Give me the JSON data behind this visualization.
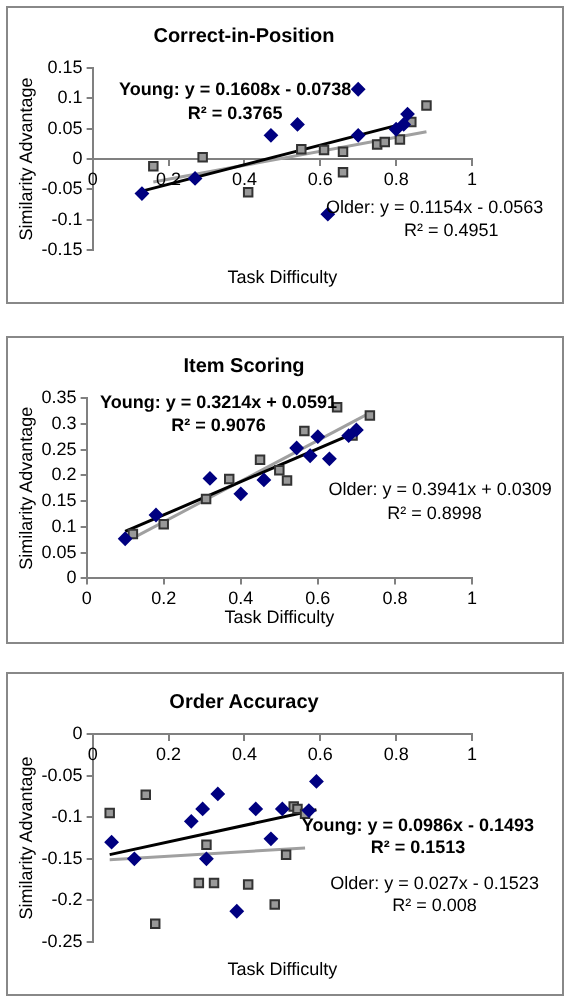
{
  "chart_data": [
    {
      "type": "scatter",
      "title": "Correct-in-Position",
      "xlabel": "Task Difficulty",
      "ylabel": "Similarity Advantage",
      "xlim": [
        0,
        1
      ],
      "xticks": [
        0,
        0.2,
        0.4,
        0.6,
        0.8,
        1
      ],
      "ylim": [
        -0.15,
        0.15
      ],
      "yticks": [
        -0.15,
        -0.1,
        -0.05,
        0,
        0.05,
        0.1,
        0.15
      ],
      "grid": false,
      "legend": false,
      "annotations": [
        "Young: y = 0.1608x - 0.0738",
        "R² = 0.3765",
        "Older: y = 0.1154x - 0.0563",
        "R² = 0.4951"
      ],
      "series": [
        {
          "type": "scatter",
          "marker": "diamond",
          "color": "#000080",
          "x": [
            0.13,
            0.27,
            0.47,
            0.54,
            0.7,
            0.7,
            0.8,
            0.82,
            0.83,
            0.62
          ],
          "values": [
            -0.057,
            -0.032,
            0.039,
            0.057,
            0.039,
            0.115,
            0.049,
            0.057,
            0.074,
            -0.091
          ]
        },
        {
          "type": "scatter",
          "marker": "square",
          "color": "#999999",
          "x": [
            0.16,
            0.29,
            0.41,
            0.55,
            0.61,
            0.66,
            0.66,
            0.75,
            0.77,
            0.81,
            0.84,
            0.88
          ],
          "values": [
            -0.012,
            0.003,
            -0.055,
            0.016,
            0.015,
            0.012,
            -0.022,
            0.024,
            0.028,
            0.032,
            0.061,
            0.088
          ]
        },
        {
          "type": "line",
          "marker": "none",
          "color": "#000000",
          "x": [
            0.13,
            0.83
          ],
          "values": [
            -0.053,
            0.06
          ]
        },
        {
          "type": "line",
          "marker": "none",
          "color": "#a0a0a0",
          "x": [
            0.16,
            0.88
          ],
          "values": [
            -0.038,
            0.045
          ]
        }
      ]
    },
    {
      "type": "scatter",
      "title": "Item Scoring",
      "xlabel": "Task Difficulty",
      "ylabel": "Similarity Advantage",
      "xlim": [
        0,
        1
      ],
      "xticks": [
        0,
        0.2,
        0.4,
        0.6,
        0.8,
        1
      ],
      "ylim": [
        0,
        0.35
      ],
      "yticks": [
        0,
        0.05,
        0.1,
        0.15,
        0.2,
        0.25,
        0.3,
        0.35
      ],
      "grid": false,
      "legend": false,
      "annotations": [
        "Young: y = 0.3214x + 0.0591",
        "R² = 0.9076",
        "Older: y = 0.3941x + 0.0309",
        "R² = 0.8998"
      ],
      "series": [
        {
          "type": "scatter",
          "marker": "diamond",
          "color": "#000080",
          "x": [
            0.1,
            0.18,
            0.32,
            0.4,
            0.46,
            0.545,
            0.58,
            0.6,
            0.63,
            0.68,
            0.7
          ],
          "values": [
            0.077,
            0.123,
            0.194,
            0.164,
            0.191,
            0.253,
            0.238,
            0.275,
            0.232,
            0.277,
            0.288
          ]
        },
        {
          "type": "scatter",
          "marker": "square",
          "color": "#999999",
          "x": [
            0.12,
            0.2,
            0.31,
            0.37,
            0.45,
            0.5,
            0.52,
            0.565,
            0.65,
            0.69,
            0.735
          ],
          "values": [
            0.086,
            0.105,
            0.154,
            0.193,
            0.23,
            0.21,
            0.19,
            0.286,
            0.332,
            0.277,
            0.316
          ]
        },
        {
          "type": "line",
          "marker": "none",
          "color": "#000000",
          "x": [
            0.1,
            0.7
          ],
          "values": [
            0.091,
            0.284
          ]
        },
        {
          "type": "line",
          "marker": "none",
          "color": "#a0a0a0",
          "x": [
            0.12,
            0.735
          ],
          "values": [
            0.078,
            0.321
          ]
        }
      ]
    },
    {
      "type": "scatter",
      "title": "Order Accuracy",
      "xlabel": "Task Difficulty",
      "ylabel": "Similarity Advantage",
      "xlim": [
        0,
        1
      ],
      "xticks": [
        0,
        0.2,
        0.4,
        0.6,
        0.8,
        1
      ],
      "ylim": [
        -0.25,
        0
      ],
      "yticks": [
        -0.25,
        -0.2,
        -0.15,
        -0.1,
        -0.05,
        0
      ],
      "grid": false,
      "legend": false,
      "annotations": [
        "Young: y = 0.0986x - 0.1493",
        "R² = 0.1513",
        "Older: y = 0.027x - 0.1523",
        "R² = 0.008"
      ],
      "series": [
        {
          "type": "scatter",
          "marker": "diamond",
          "color": "#000080",
          "x": [
            0.05,
            0.11,
            0.26,
            0.29,
            0.33,
            0.3,
            0.38,
            0.43,
            0.47,
            0.5,
            0.57,
            0.59
          ],
          "values": [
            -0.13,
            -0.15,
            -0.105,
            -0.09,
            -0.072,
            -0.15,
            -0.213,
            -0.09,
            -0.126,
            -0.09,
            -0.092,
            -0.057
          ]
        },
        {
          "type": "scatter",
          "marker": "square",
          "color": "#999999",
          "x": [
            0.045,
            0.14,
            0.165,
            0.28,
            0.3,
            0.32,
            0.41,
            0.48,
            0.51,
            0.53,
            0.54,
            0.56
          ],
          "values": [
            -0.095,
            -0.073,
            -0.228,
            -0.179,
            -0.133,
            -0.179,
            -0.181,
            -0.205,
            -0.145,
            -0.087,
            -0.09,
            -0.096
          ]
        },
        {
          "type": "line",
          "marker": "none",
          "color": "#000000",
          "x": [
            0.045,
            0.59
          ],
          "values": [
            -0.145,
            -0.091
          ]
        },
        {
          "type": "line",
          "marker": "none",
          "color": "#a0a0a0",
          "x": [
            0.045,
            0.56
          ],
          "values": [
            -0.151,
            -0.137
          ]
        }
      ]
    }
  ]
}
